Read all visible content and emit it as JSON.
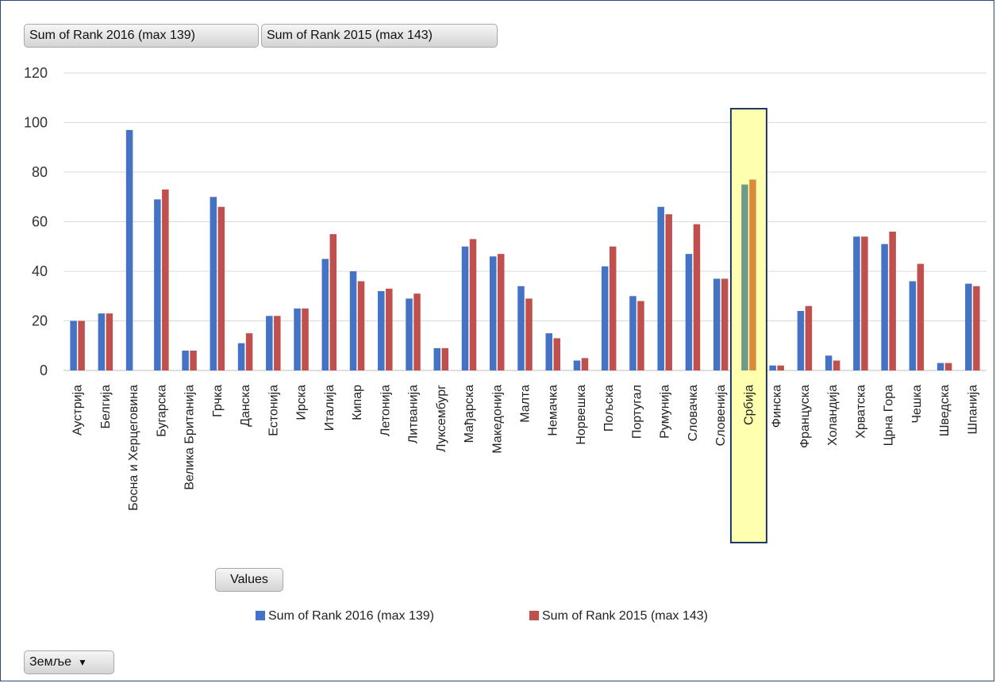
{
  "field_buttons": {
    "series_2016": "Sum of Rank 2016 (max 139)",
    "series_2015": "Sum of Rank 2015 (max 143)",
    "values": "Values",
    "countries": "Земље"
  },
  "legend": {
    "series_2016": "Sum of Rank 2016 (max 139)",
    "series_2015": "Sum of Rank 2015 (max 143)"
  },
  "colors": {
    "series_2016": "#4472c4",
    "series_2015": "#c0504d",
    "highlight_fill": "#ffffb0",
    "highlight_stroke": "#1f3864",
    "highlight_label": "#8c7a2a"
  },
  "chart_data": {
    "type": "bar",
    "title": "",
    "xlabel": "",
    "ylabel": "",
    "ylim": [
      0,
      120
    ],
    "yticks": [
      0,
      20,
      40,
      60,
      80,
      100,
      120
    ],
    "grid": true,
    "legend_position": "bottom",
    "highlighted_category": "Србија",
    "categories": [
      "Аустрија",
      "Белгија",
      "Босна и Херцеговина",
      "Бугарска",
      "Велика Британија",
      "Грчка",
      "Данска",
      "Естонија",
      "Ирска",
      "Италија",
      "Кипар",
      "Летонија",
      "Литванија",
      "Луксембург",
      "Мађарска",
      "Македонија",
      "Малта",
      "Немачка",
      "Норвешка",
      "Пољска",
      "Португал",
      "Румунија",
      "Словачка",
      "Словенија",
      "Србија",
      "Финска",
      "Француска",
      "Холандија",
      "Хрватска",
      "Црна Гора",
      "Чешка",
      "Шведска",
      "Шпанија"
    ],
    "series": [
      {
        "name": "Sum of Rank 2016 (max 139)",
        "values": [
          20,
          23,
          97,
          69,
          8,
          70,
          11,
          22,
          25,
          45,
          40,
          32,
          29,
          9,
          50,
          46,
          34,
          15,
          4,
          42,
          30,
          66,
          47,
          37,
          75,
          2,
          24,
          6,
          54,
          51,
          36,
          3,
          35
        ]
      },
      {
        "name": "Sum of Rank 2015 (max 143)",
        "values": [
          20,
          23,
          null,
          73,
          8,
          66,
          15,
          22,
          25,
          55,
          36,
          33,
          31,
          9,
          53,
          47,
          29,
          13,
          5,
          50,
          28,
          63,
          59,
          37,
          77,
          2,
          26,
          4,
          54,
          56,
          43,
          3,
          34
        ]
      }
    ]
  }
}
